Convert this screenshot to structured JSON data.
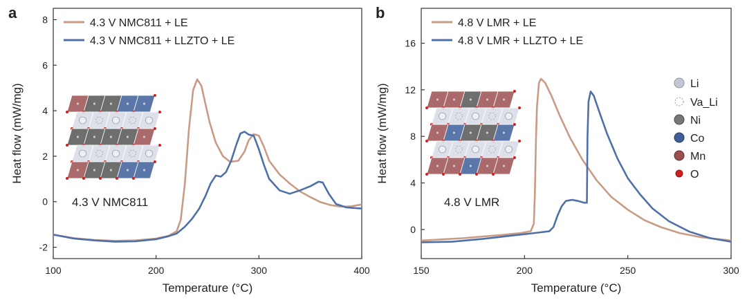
{
  "colors": {
    "series_a": "#c89c84",
    "series_b": "#4f6fa8",
    "axis": "#333333"
  },
  "chart_data": [
    {
      "panel": "a",
      "type": "line",
      "title": "",
      "xlabel": "Temperature (°C)",
      "ylabel": "Heat flow (mW/mg)",
      "xlim": [
        100,
        400
      ],
      "ylim": [
        -2.5,
        8.5
      ],
      "xticks": [
        100,
        200,
        300,
        400
      ],
      "yticks": [
        -2,
        0,
        2,
        4,
        6,
        8
      ],
      "legend_position": "top-left",
      "annotation": "4.3 V NMC811",
      "series": [
        {
          "name": "4.3 V NMC811 + LE",
          "color_key": "series_a",
          "points": [
            [
              100,
              -1.45
            ],
            [
              120,
              -1.6
            ],
            [
              140,
              -1.68
            ],
            [
              160,
              -1.72
            ],
            [
              180,
              -1.7
            ],
            [
              200,
              -1.62
            ],
            [
              212,
              -1.5
            ],
            [
              220,
              -1.3
            ],
            [
              224,
              -0.8
            ],
            [
              228,
              0.8
            ],
            [
              232,
              3.2
            ],
            [
              236,
              4.9
            ],
            [
              240,
              5.38
            ],
            [
              244,
              5.1
            ],
            [
              248,
              4.3
            ],
            [
              252,
              3.5
            ],
            [
              258,
              2.6
            ],
            [
              265,
              2.0
            ],
            [
              272,
              1.75
            ],
            [
              280,
              1.8
            ],
            [
              286,
              2.2
            ],
            [
              290,
              2.7
            ],
            [
              295,
              2.97
            ],
            [
              300,
              2.9
            ],
            [
              305,
              2.4
            ],
            [
              310,
              1.8
            ],
            [
              320,
              1.2
            ],
            [
              330,
              0.8
            ],
            [
              340,
              0.45
            ],
            [
              350,
              0.2
            ],
            [
              360,
              -0.02
            ],
            [
              370,
              -0.15
            ],
            [
              380,
              -0.22
            ],
            [
              390,
              -0.2
            ],
            [
              400,
              -0.12
            ]
          ]
        },
        {
          "name": "4.3 V NMC811 + LLZTO + LE",
          "color_key": "series_b",
          "points": [
            [
              100,
              -1.45
            ],
            [
              120,
              -1.62
            ],
            [
              140,
              -1.7
            ],
            [
              160,
              -1.76
            ],
            [
              180,
              -1.74
            ],
            [
              200,
              -1.65
            ],
            [
              212,
              -1.52
            ],
            [
              220,
              -1.4
            ],
            [
              228,
              -1.1
            ],
            [
              235,
              -0.75
            ],
            [
              242,
              -0.3
            ],
            [
              248,
              0.25
            ],
            [
              253,
              0.8
            ],
            [
              258,
              1.15
            ],
            [
              263,
              1.1
            ],
            [
              268,
              1.3
            ],
            [
              273,
              1.8
            ],
            [
              278,
              2.5
            ],
            [
              282,
              3.0
            ],
            [
              286,
              3.08
            ],
            [
              290,
              2.95
            ],
            [
              295,
              2.9
            ],
            [
              300,
              2.3
            ],
            [
              305,
              1.6
            ],
            [
              310,
              1.0
            ],
            [
              320,
              0.5
            ],
            [
              330,
              0.35
            ],
            [
              340,
              0.5
            ],
            [
              350,
              0.68
            ],
            [
              358,
              0.88
            ],
            [
              362,
              0.85
            ],
            [
              368,
              0.35
            ],
            [
              375,
              -0.1
            ],
            [
              385,
              -0.25
            ],
            [
              400,
              -0.3
            ]
          ]
        }
      ]
    },
    {
      "panel": "b",
      "type": "line",
      "title": "",
      "xlabel": "Temperature (°C)",
      "ylabel": "Heat flow (mW/mg)",
      "xlim": [
        150,
        300
      ],
      "ylim": [
        -2.5,
        19
      ],
      "xticks": [
        150,
        200,
        250,
        300
      ],
      "yticks": [
        0,
        4,
        8,
        12,
        16
      ],
      "legend_position": "top-left",
      "annotation": "4.8 V LMR",
      "series": [
        {
          "name": "4.8 V LMR + LE",
          "color_key": "series_a",
          "points": [
            [
              150,
              -0.95
            ],
            [
              160,
              -0.85
            ],
            [
              170,
              -0.75
            ],
            [
              180,
              -0.6
            ],
            [
              190,
              -0.45
            ],
            [
              198,
              -0.3
            ],
            [
              203,
              -0.15
            ],
            [
              204.5,
              0.5
            ],
            [
              205,
              3.0
            ],
            [
              205.5,
              7.5
            ],
            [
              206,
              10.5
            ],
            [
              207,
              12.6
            ],
            [
              208,
              12.95
            ],
            [
              210,
              12.6
            ],
            [
              213,
              11.5
            ],
            [
              217,
              9.8
            ],
            [
              222,
              7.9
            ],
            [
              228,
              6.0
            ],
            [
              235,
              4.2
            ],
            [
              242,
              2.8
            ],
            [
              250,
              1.7
            ],
            [
              258,
              0.8
            ],
            [
              266,
              0.2
            ],
            [
              275,
              -0.3
            ],
            [
              285,
              -0.65
            ],
            [
              300,
              -0.95
            ]
          ]
        },
        {
          "name": "4.8 V LMR + LLZTO + LE",
          "color_key": "series_b",
          "points": [
            [
              150,
              -1.1
            ],
            [
              165,
              -1.05
            ],
            [
              180,
              -0.8
            ],
            [
              195,
              -0.5
            ],
            [
              205,
              -0.3
            ],
            [
              212,
              -0.15
            ],
            [
              214,
              0.2
            ],
            [
              216,
              1.2
            ],
            [
              218,
              2.0
            ],
            [
              220,
              2.45
            ],
            [
              223,
              2.55
            ],
            [
              226,
              2.45
            ],
            [
              229,
              2.3
            ],
            [
              230.2,
              2.3
            ],
            [
              230.5,
              8.0
            ],
            [
              231,
              11.0
            ],
            [
              232,
              11.85
            ],
            [
              233.5,
              11.5
            ],
            [
              236,
              10.2
            ],
            [
              240,
              8.2
            ],
            [
              245,
              6.1
            ],
            [
              250,
              4.4
            ],
            [
              256,
              3.0
            ],
            [
              262,
              1.8
            ],
            [
              270,
              0.7
            ],
            [
              280,
              -0.2
            ],
            [
              290,
              -0.75
            ],
            [
              300,
              -1.05
            ]
          ]
        }
      ]
    }
  ],
  "legend_labels": {
    "li": "Li",
    "va_li": "Va_Li",
    "ni": "Ni",
    "co": "Co",
    "mn": "Mn",
    "o": "O"
  },
  "crystal_colors": {
    "li": "#c2c8d2",
    "ni": "#555555",
    "co": "#3e5f9a",
    "mn": "#9b4f50",
    "o": "#d22020"
  }
}
